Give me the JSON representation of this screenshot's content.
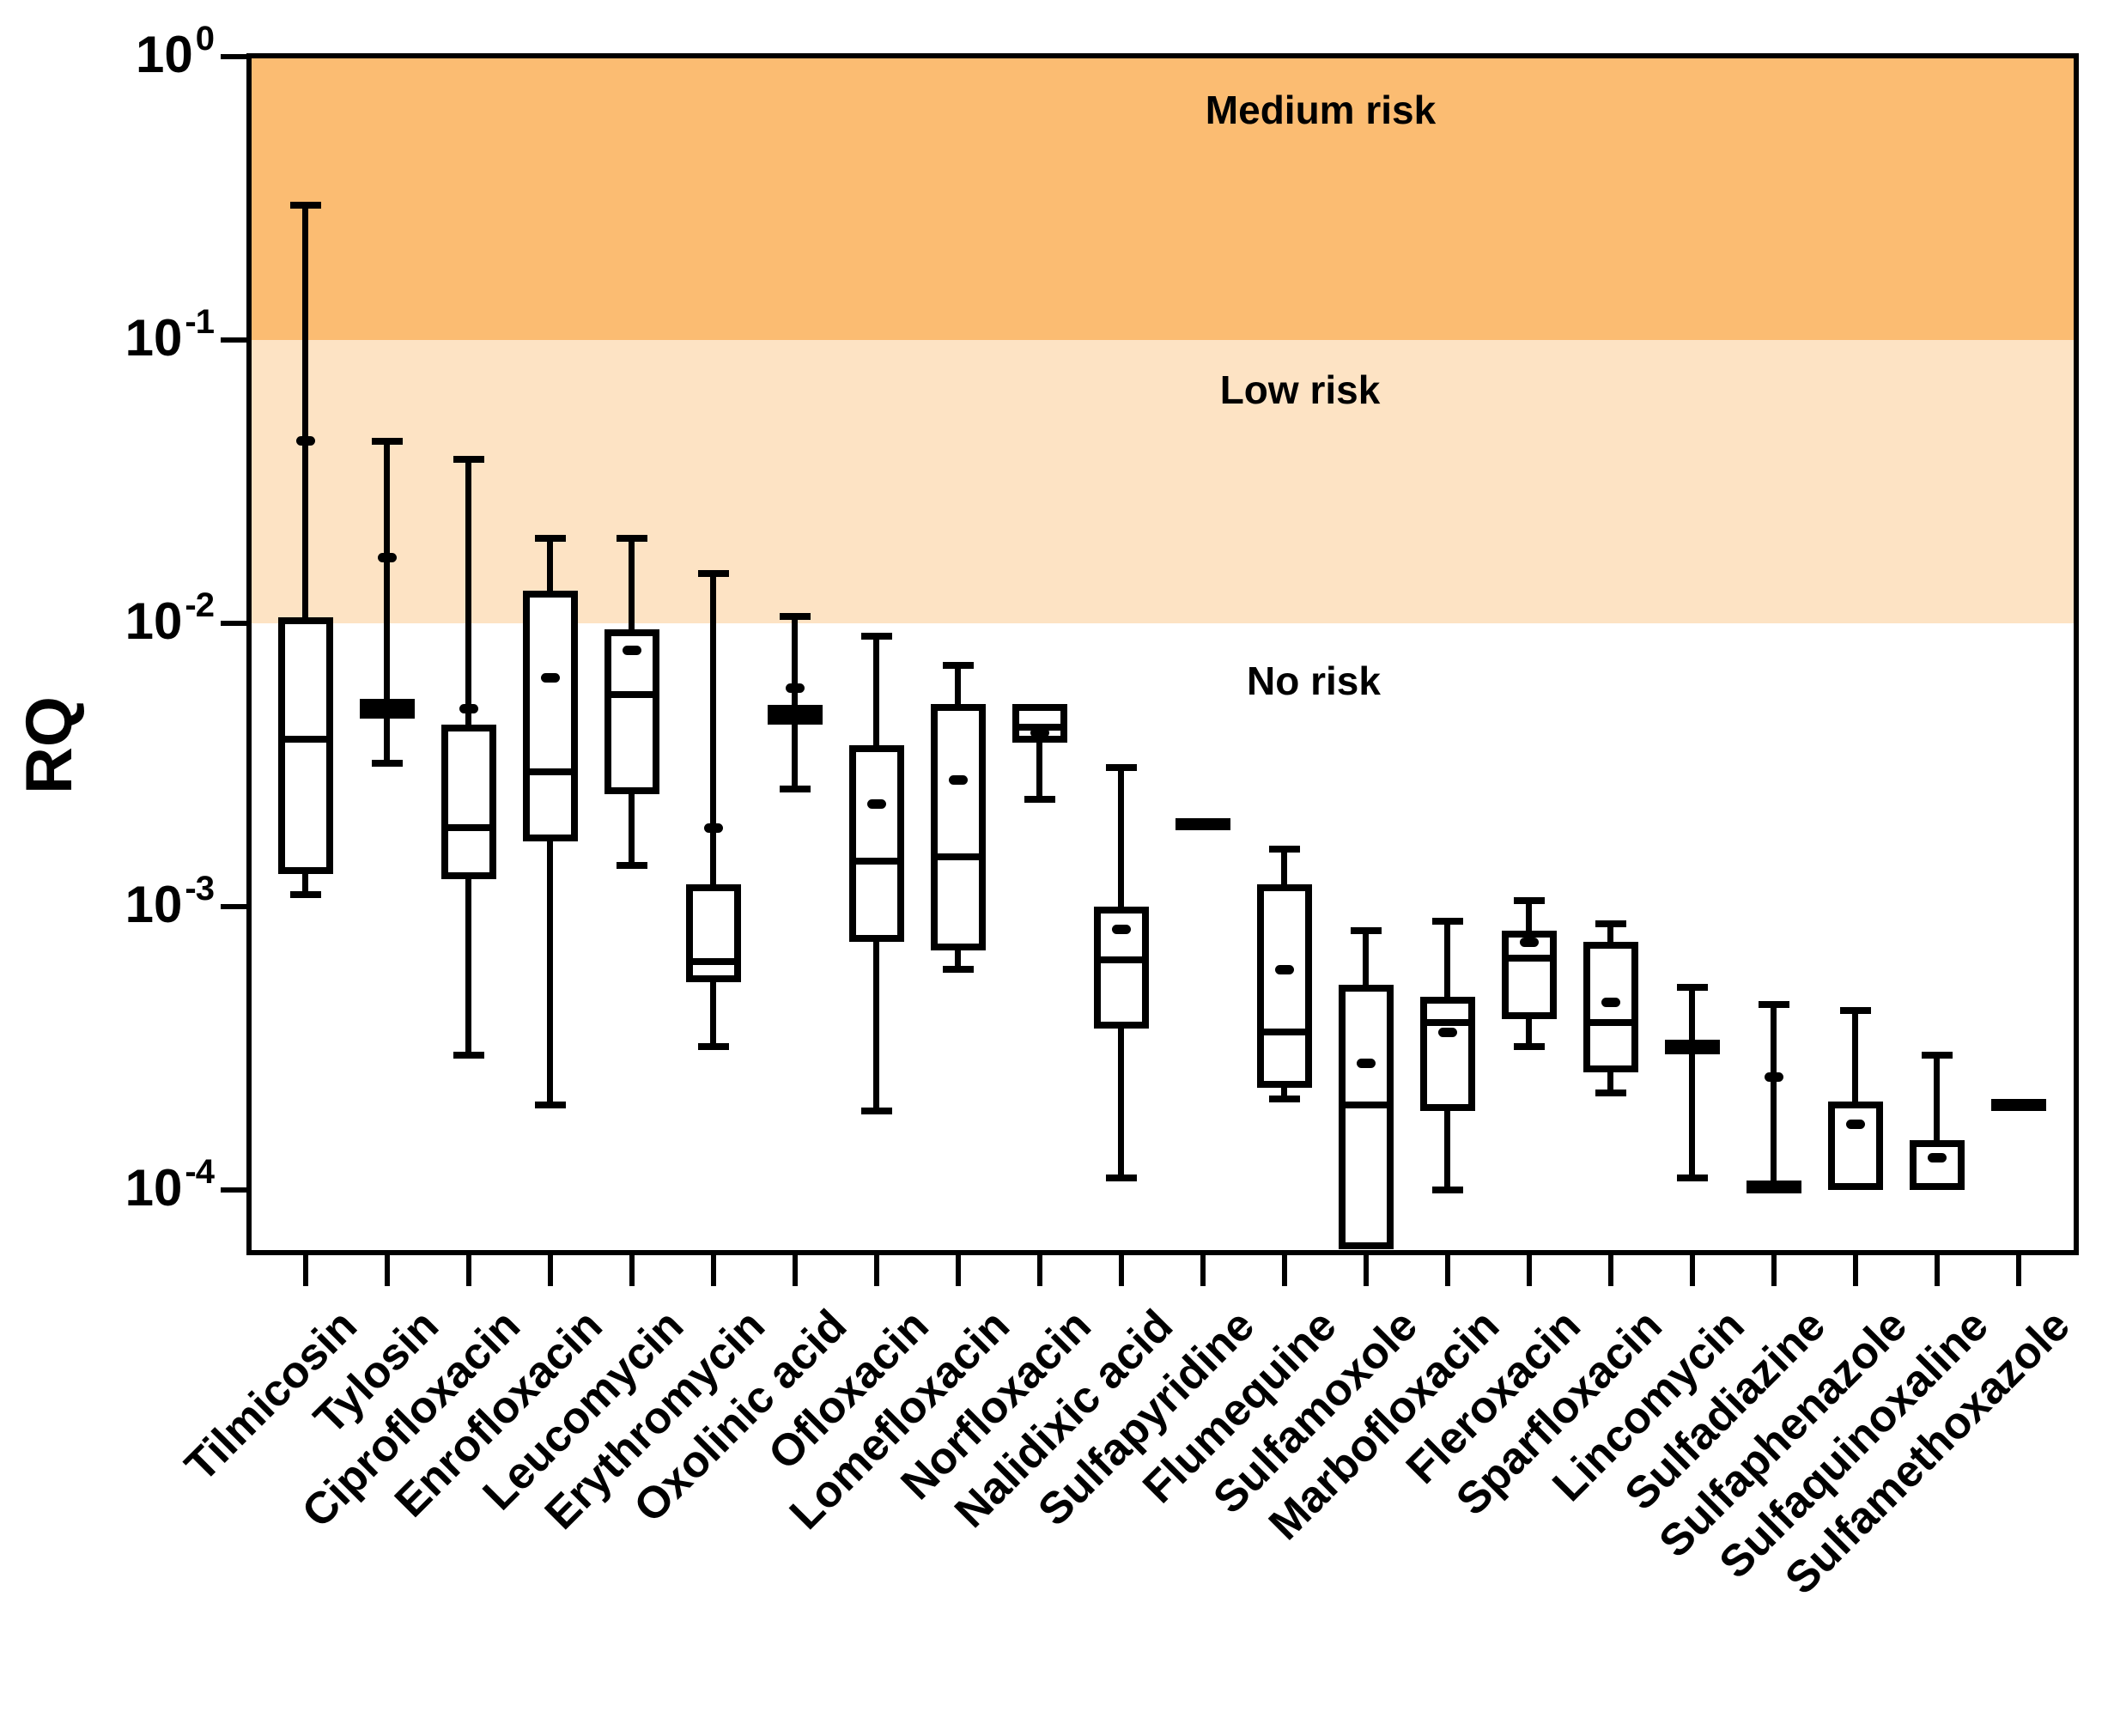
{
  "y_axis": {
    "label": "RQ",
    "ticks": [
      {
        "base": "10",
        "exp": "0",
        "value": 1
      },
      {
        "base": "10",
        "exp": "-1",
        "value": 0.1
      },
      {
        "base": "10",
        "exp": "-2",
        "value": 0.01
      },
      {
        "base": "10",
        "exp": "-3",
        "value": 0.001
      },
      {
        "base": "10",
        "exp": "-4",
        "value": 0.0001
      }
    ]
  },
  "bands": [
    {
      "label": "Medium risk",
      "color": "#FBBC72",
      "from": 1,
      "to": 0.1
    },
    {
      "label": "Low risk",
      "color": "#FDE3C4",
      "from": 0.1,
      "to": 0.01
    },
    {
      "label": "No risk",
      "color": "#FFFFFF",
      "from": 0.01,
      "to": 5e-05
    }
  ],
  "chart_data": {
    "type": "box",
    "title": "",
    "xlabel": "",
    "ylabel": "RQ",
    "y_scale": "log",
    "ylim": [
      5e-05,
      1
    ],
    "grid": false,
    "legend": "none",
    "categories": [
      "Tilmicosin",
      "Tylosin",
      "Ciprofloxacin",
      "Enrofloxacin",
      "Leucomycin",
      "Erythromycin",
      "Oxolinic acid",
      "Ofloxacin",
      "Lomefloxacin",
      "Norfloxacin",
      "Nalidixic acid",
      "Sulfapyridine",
      "Flumequine",
      "Sulfamoxole",
      "Marbofloxacin",
      "Fleroxacin",
      "Sparfloxacin",
      "Lincomycin",
      "Sulfadiazine",
      "Sulfaphenazole",
      "Sulfaquinoxaline",
      "Sulfamethoxazole"
    ],
    "boxes": [
      {
        "name": "Tilmicosin",
        "min": 0.0011,
        "q1": 0.0013,
        "median": 0.0039,
        "q3": 0.0105,
        "max": 0.3,
        "mean": 0.044
      },
      {
        "name": "Tylosin",
        "min": 0.0032,
        "q1": 0.0046,
        "median": 0.005,
        "q3": 0.0054,
        "max": 0.044,
        "mean": 0.017
      },
      {
        "name": "Ciprofloxacin",
        "min": 0.0003,
        "q1": 0.00125,
        "median": 0.0019,
        "q3": 0.0044,
        "max": 0.038,
        "mean": 0.005
      },
      {
        "name": "Enrofloxacin",
        "min": 0.0002,
        "q1": 0.0017,
        "median": 0.003,
        "q3": 0.013,
        "max": 0.02,
        "mean": 0.0064
      },
      {
        "name": "Leucomycin",
        "min": 0.0014,
        "q1": 0.0025,
        "median": 0.0056,
        "q3": 0.0095,
        "max": 0.02,
        "mean": 0.008
      },
      {
        "name": "Erythromycin",
        "min": 0.00032,
        "q1": 0.00054,
        "median": 0.00064,
        "q3": 0.0012,
        "max": 0.015,
        "mean": 0.0019
      },
      {
        "name": "Oxolinic acid",
        "min": 0.0026,
        "q1": 0.0045,
        "median": 0.00475,
        "q3": 0.005,
        "max": 0.0106,
        "mean": 0.0059
      },
      {
        "name": "Ofloxacin",
        "min": 0.00019,
        "q1": 0.00075,
        "median": 0.00145,
        "q3": 0.0037,
        "max": 0.009,
        "mean": 0.0023
      },
      {
        "name": "Lomefloxacin",
        "min": 0.0006,
        "q1": 0.0007,
        "median": 0.0015,
        "q3": 0.0052,
        "max": 0.0071,
        "mean": 0.0028
      },
      {
        "name": "Norfloxacin",
        "min": 0.0024,
        "q1": 0.0038,
        "median": 0.0043,
        "q3": 0.0052,
        "max": 0.0052,
        "mean": 0.0041
      },
      {
        "name": "Nalidixic acid",
        "min": 0.00011,
        "q1": 0.00037,
        "median": 0.00065,
        "q3": 0.001,
        "max": 0.0031,
        "mean": 0.00083
      },
      {
        "name": "Sulfapyridine",
        "min": 0.00195,
        "q1": 0.00195,
        "median": 0.00195,
        "q3": 0.00195,
        "max": 0.00195,
        "mean": null
      },
      {
        "name": "Flumequine",
        "min": 0.00021,
        "q1": 0.00023,
        "median": 0.00036,
        "q3": 0.0012,
        "max": 0.0016,
        "mean": 0.0006
      },
      {
        "name": "Sulfamoxole",
        "min": 6.2e-05,
        "q1": 6.2e-05,
        "median": 0.0002,
        "q3": 0.00053,
        "max": 0.00082,
        "mean": 0.00028
      },
      {
        "name": "Marbofloxacin",
        "min": 0.0001,
        "q1": 0.00019,
        "median": 0.00039,
        "q3": 0.00048,
        "max": 0.00089,
        "mean": 0.00036
      },
      {
        "name": "Fleroxacin",
        "min": 0.00032,
        "q1": 0.0004,
        "median": 0.00066,
        "q3": 0.00082,
        "max": 0.00105,
        "mean": 0.00075
      },
      {
        "name": "Sparfloxacin",
        "min": 0.00022,
        "q1": 0.00026,
        "median": 0.00039,
        "q3": 0.00075,
        "max": 0.00087,
        "mean": 0.00046
      },
      {
        "name": "Lincomycin",
        "min": 0.00011,
        "q1": 0.00031,
        "median": 0.00032,
        "q3": 0.00033,
        "max": 0.00052,
        "mean": null
      },
      {
        "name": "Sulfadiazine",
        "min": 0.0001,
        "q1": 0.0001,
        "median": 0.0001,
        "q3": 0.000105,
        "max": 0.00045,
        "mean": 0.00025
      },
      {
        "name": "Sulfaphenazole",
        "min": 0.0001,
        "q1": 0.0001,
        "median": 0.0001,
        "q3": 0.000205,
        "max": 0.00043,
        "mean": 0.00017
      },
      {
        "name": "Sulfaquinoxaline",
        "min": 0.0001,
        "q1": 0.0001,
        "median": 0.0001,
        "q3": 0.00015,
        "max": 0.0003,
        "mean": 0.00013
      },
      {
        "name": "Sulfamethoxazole",
        "min": 0.0002,
        "q1": 0.0002,
        "median": 0.0002,
        "q3": 0.0002,
        "max": 0.0002,
        "mean": null
      }
    ]
  }
}
